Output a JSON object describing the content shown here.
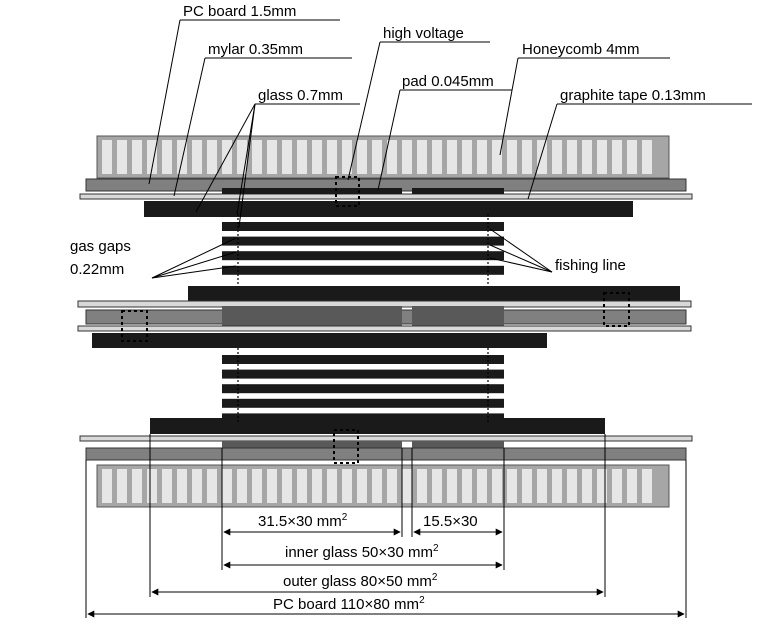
{
  "labels": {
    "pc_board": "PC board 1.5mm",
    "mylar": "mylar 0.35mm",
    "glass": "glass 0.7mm",
    "high_voltage": "high voltage",
    "pad": "pad 0.045mm",
    "honeycomb": "Honeycomb 4mm",
    "graphite_tape": "graphite  tape 0.13mm",
    "gas_gaps": "gas gaps",
    "gas_gaps_size": "0.22mm",
    "fishing_line": "fishing line"
  },
  "dimensions": {
    "pad_large": "31.5×30 mm",
    "pad_large_exp": "2",
    "pad_small": "15.5×30",
    "inner_glass": "inner glass 50×30 mm",
    "inner_glass_exp": "2",
    "outer_glass": "outer glass 80×50 mm",
    "outer_glass_exp": "2",
    "pc_board": "PC board 110×80 mm",
    "pc_board_exp": "2"
  },
  "colors": {
    "honeycomb_fill": "#a6a6a6",
    "honeycomb_cell": "#e6e6e6",
    "pcb": "#808080",
    "mylar": "#d9d9d9",
    "glass": "#1a1a1a",
    "graphite": "#595959",
    "line": "#000000"
  }
}
